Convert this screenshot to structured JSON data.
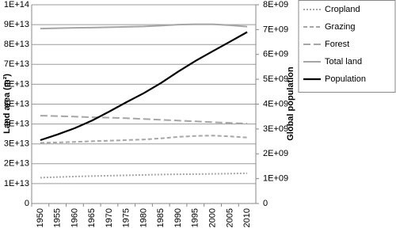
{
  "chart_data": {
    "type": "line",
    "y_label": "Land area (m²)",
    "y2_label": "Global population",
    "categories": [
      "1950",
      "1955",
      "1960",
      "1965",
      "1970",
      "1975",
      "1980",
      "1985",
      "1990",
      "1995",
      "2000",
      "2005",
      "2010"
    ],
    "series": [
      {
        "name": "Cropland",
        "color": "#a6a6a6",
        "dash": "dotted",
        "values": [
          13000000000000.0,
          13300000000000.0,
          13600000000000.0,
          13800000000000.0,
          14000000000000.0,
          14200000000000.0,
          14400000000000.0,
          14600000000000.0,
          14700000000000.0,
          14800000000000.0,
          14900000000000.0,
          15000000000000.0,
          15200000000000.0
        ]
      },
      {
        "name": "Grazing",
        "color": "#a6a6a6",
        "dash": "dashed",
        "values": [
          30500000000000.0,
          30700000000000.0,
          31000000000000.0,
          31300000000000.0,
          31600000000000.0,
          31900000000000.0,
          32200000000000.0,
          32800000000000.0,
          33500000000000.0,
          34000000000000.0,
          34200000000000.0,
          33800000000000.0,
          33200000000000.0
        ]
      },
      {
        "name": "Forest",
        "color": "#a6a6a6",
        "dash": "longdash",
        "values": [
          44200000000000.0,
          44000000000000.0,
          43700000000000.0,
          43400000000000.0,
          43200000000000.0,
          42900000000000.0,
          42500000000000.0,
          42100000000000.0,
          41700000000000.0,
          41300000000000.0,
          40900000000000.0,
          40500000000000.0,
          40200000000000.0
        ]
      },
      {
        "name": "Total land",
        "color": "#a6a6a6",
        "dash": "solid",
        "values": [
          88000000000000.0,
          88200000000000.0,
          88400000000000.0,
          88500000000000.0,
          88700000000000.0,
          88900000000000.0,
          89100000000000.0,
          89500000000000.0,
          90000000000000.0,
          90200000000000.0,
          90200000000000.0,
          89700000000000.0,
          89000000000000.0
        ]
      },
      {
        "name": "Population",
        "color": "#000000",
        "dash": "solid",
        "axis": "y2",
        "values": [
          2550000000.0,
          2780000000.0,
          3030000000.0,
          3340000000.0,
          3700000000.0,
          4080000000.0,
          4440000000.0,
          4850000000.0,
          5310000000.0,
          5740000000.0,
          6130000000.0,
          6510000000.0,
          6900000000.0
        ]
      }
    ],
    "ylim": [
      0,
      100000000000000.0
    ],
    "yticks": [
      0,
      {
        "value": 10000000000000.0,
        "label": "1E+13"
      },
      {
        "value": 20000000000000.0,
        "label": "2E+13"
      },
      {
        "value": 30000000000000.0,
        "label": "3E+13"
      },
      {
        "value": 40000000000000.0,
        "label": "4E+13"
      },
      {
        "value": 50000000000000.0,
        "label": "5E+13"
      },
      {
        "value": 60000000000000.0,
        "label": "6E+13"
      },
      {
        "value": 70000000000000.0,
        "label": "7E+13"
      },
      {
        "value": 80000000000000.0,
        "label": "8E+13"
      },
      {
        "value": 90000000000000.0,
        "label": "9E+13"
      },
      {
        "value": 100000000000000.0,
        "label": "1E+14"
      }
    ],
    "y2lim": [
      0,
      8000000000.0
    ],
    "y2ticks": [
      0,
      {
        "value": 1000000000.0,
        "label": "1E+09"
      },
      {
        "value": 2000000000.0,
        "label": "2E+09"
      },
      {
        "value": 3000000000.0,
        "label": "3E+09"
      },
      {
        "value": 4000000000.0,
        "label": "4E+09"
      },
      {
        "value": 5000000000.0,
        "label": "5E+09"
      },
      {
        "value": 6000000000.0,
        "label": "6E+09"
      },
      {
        "value": 7000000000.0,
        "label": "7E+09"
      },
      {
        "value": 8000000000.0,
        "label": "8E+09"
      }
    ],
    "grid": true,
    "legend": "top-right"
  }
}
